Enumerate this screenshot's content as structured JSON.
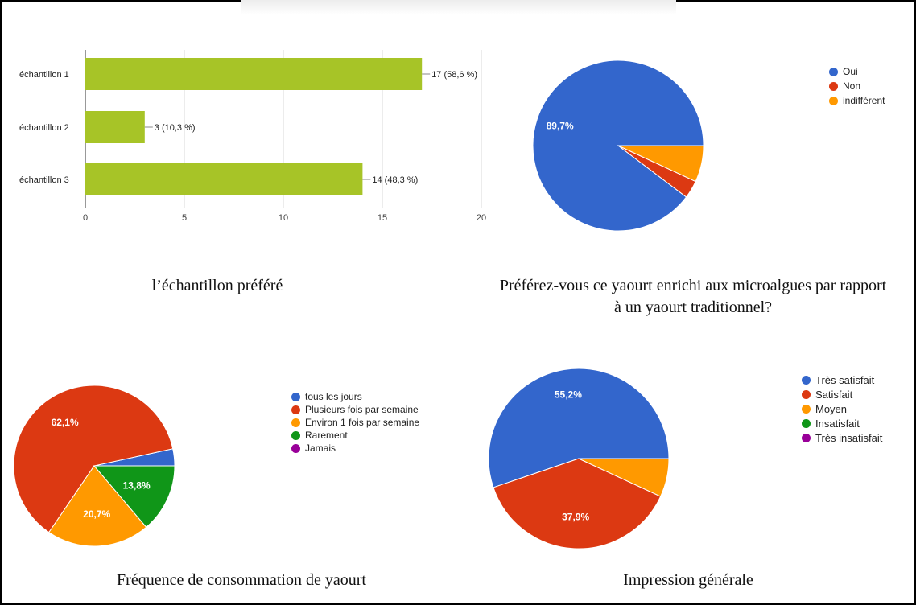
{
  "colors": {
    "bar": "#a7c427",
    "blue": "#3366cc",
    "red": "#dc3912",
    "orange": "#ff9900",
    "green": "#109618",
    "purple": "#990099"
  },
  "chart_data": [
    {
      "type": "bar",
      "orientation": "horizontal",
      "title": "l’échantillon préféré",
      "categories": [
        "échantillon 1",
        "échantillon 2",
        "échantillon 3"
      ],
      "values": [
        17,
        3,
        14
      ],
      "data_labels": [
        "17 (58,6 %)",
        "3 (10,3 %)",
        "14 (48,3 %)"
      ],
      "xlim": [
        0,
        20
      ],
      "x_ticks": [
        "0",
        "5",
        "10",
        "15",
        "20"
      ],
      "grid": true
    },
    {
      "type": "pie",
      "title": "Préférez-vous ce yaourt enrichi aux microalgues par rapport à un yaourt traditionnel?",
      "labels": [
        "Oui",
        "Non",
        "indifférent"
      ],
      "values": [
        89.7,
        3.4,
        6.9
      ],
      "slice_labels": [
        "89,7%",
        "",
        ""
      ],
      "legend": "top-right"
    },
    {
      "type": "pie",
      "title": "Fréquence de consommation de yaourt",
      "labels": [
        "tous les jours",
        "Plusieurs fois par semaine",
        "Environ 1 fois par semaine",
        "Rarement",
        "Jamais"
      ],
      "values": [
        3.4,
        62.1,
        20.7,
        13.8,
        0
      ],
      "slice_labels": [
        "",
        "62,1%",
        "20,7%",
        "13,8%",
        ""
      ],
      "legend": "top-right"
    },
    {
      "type": "pie",
      "title": "Impression générale",
      "labels": [
        "Très satisfait",
        "Satisfait",
        "Moyen",
        "Insatisfait",
        "Très insatisfait"
      ],
      "values": [
        55.2,
        37.9,
        6.9,
        0,
        0
      ],
      "slice_labels": [
        "55,2%",
        "37,9%",
        "",
        "",
        ""
      ],
      "legend": "top-right"
    }
  ]
}
